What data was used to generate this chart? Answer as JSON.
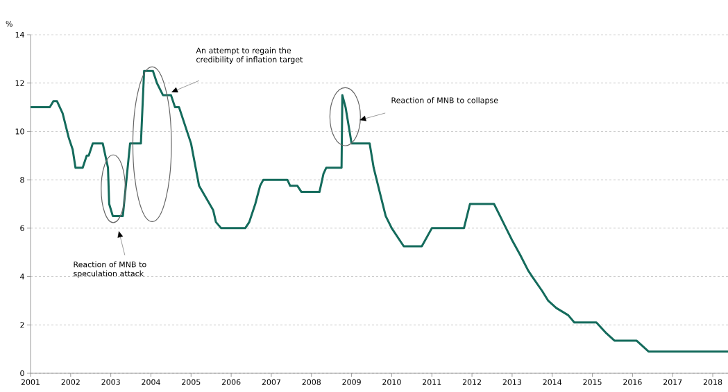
{
  "chart_data": {
    "type": "line",
    "ylabel": "%",
    "color": "#146b5c",
    "x": [
      2001.0,
      2001.48,
      2001.57,
      2001.66,
      2001.8,
      2001.95,
      2002.05,
      2002.12,
      2002.3,
      2002.4,
      2002.45,
      2002.55,
      2002.8,
      2002.93,
      2002.96,
      2003.05,
      2003.3,
      2003.48,
      2003.75,
      2003.83,
      2004.05,
      2004.15,
      2004.3,
      2004.5,
      2004.6,
      2004.7,
      2005.0,
      2005.2,
      2005.55,
      2005.62,
      2005.75,
      2006.35,
      2006.45,
      2006.6,
      2006.72,
      2006.8,
      2007.4,
      2007.47,
      2007.65,
      2007.75,
      2008.2,
      2008.3,
      2008.37,
      2008.75,
      2008.77,
      2008.85,
      2009.0,
      2009.45,
      2009.55,
      2009.7,
      2009.85,
      2010.0,
      2010.3,
      2010.75,
      2011.0,
      2011.8,
      2011.95,
      2012.55,
      2012.7,
      2012.85,
      2013.0,
      2013.2,
      2013.4,
      2013.5,
      2013.75,
      2013.9,
      2014.1,
      2014.4,
      2014.55,
      2015.1,
      2015.35,
      2015.55,
      2016.1,
      2016.4,
      2018.38
    ],
    "values": [
      11,
      11,
      11.25,
      11.25,
      10.75,
      9.75,
      9.25,
      8.5,
      8.5,
      9,
      9,
      9.5,
      9.5,
      8.5,
      7,
      6.5,
      6.5,
      9.5,
      9.5,
      12.5,
      12.5,
      12,
      11.5,
      11.5,
      11,
      11,
      9.5,
      7.75,
      6.75,
      6.25,
      6,
      6,
      6.25,
      7,
      7.75,
      8,
      8,
      7.75,
      7.75,
      7.5,
      7.5,
      8.25,
      8.5,
      8.5,
      11.5,
      11,
      9.5,
      9.5,
      8.5,
      7.5,
      6.5,
      6,
      5.25,
      5.25,
      6,
      6,
      7,
      7,
      6.5,
      6,
      5.5,
      4.9,
      4.25,
      4,
      3.4,
      3,
      2.7,
      2.4,
      2.1,
      2.1,
      1.65,
      1.35,
      1.35,
      0.9,
      0.9
    ],
    "xlim": [
      2001,
      2018.38
    ],
    "xticks": [
      2001,
      2002,
      2003,
      2004,
      2005,
      2006,
      2007,
      2008,
      2009,
      2010,
      2011,
      2012,
      2013,
      2014,
      2015,
      2016,
      2017,
      2018
    ],
    "ylim": [
      0,
      14
    ],
    "yticks": [
      0,
      2,
      4,
      6,
      8,
      10,
      12,
      14
    ],
    "grid": "y",
    "line_style": "solid",
    "annotations": [
      "Reaction of MNB to speculation attack",
      "An attempt to regain the credibility of inflation target",
      "Reaction of MNB to collapse"
    ]
  }
}
